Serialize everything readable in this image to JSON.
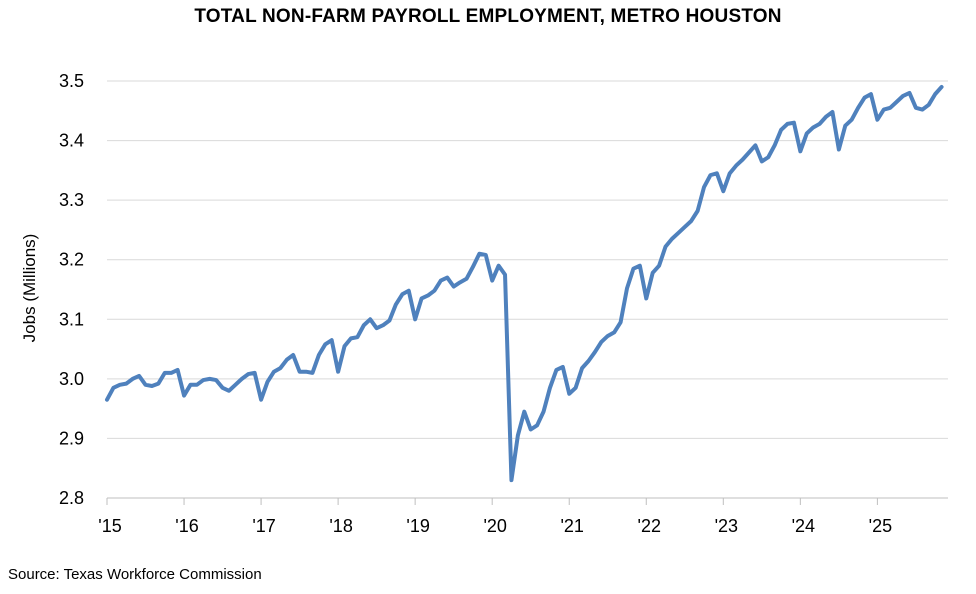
{
  "chart_data": {
    "type": "line",
    "title": "TOTAL NON-FARM PAYROLL EMPLOYMENT, METRO HOUSTON",
    "ylabel": "Jobs (Millions)",
    "xlabel": "",
    "ylim": [
      2.8,
      3.5
    ],
    "yticks": [
      "2.8",
      "2.9",
      "3.0",
      "3.1",
      "3.2",
      "3.3",
      "3.4",
      "3.5"
    ],
    "xticks": [
      "'15",
      "'16",
      "'17",
      "'18",
      "'19",
      "'20",
      "'21",
      "'22",
      "'23",
      "'24",
      "'25"
    ],
    "x_start": "2015-01",
    "grid": "horizontal",
    "legend": "none",
    "line_color": "#4f81bd",
    "series": [
      {
        "values": [
          2.965,
          2.985,
          2.99,
          2.992,
          3.0,
          3.005,
          2.99,
          2.988,
          2.992,
          3.01,
          3.01,
          3.015,
          2.972,
          2.99,
          2.99,
          2.998,
          3.0,
          2.998,
          2.985,
          2.98,
          2.99,
          3.0,
          3.008,
          3.01,
          2.965,
          2.995,
          3.012,
          3.018,
          3.032,
          3.04,
          3.012,
          3.012,
          3.01,
          3.04,
          3.058,
          3.065,
          3.012,
          3.055,
          3.068,
          3.07,
          3.09,
          3.1,
          3.085,
          3.09,
          3.098,
          3.125,
          3.142,
          3.148,
          3.1,
          3.135,
          3.14,
          3.148,
          3.165,
          3.17,
          3.155,
          3.162,
          3.168,
          3.188,
          3.21,
          3.208,
          3.165,
          3.19,
          3.175,
          2.83,
          2.905,
          2.945,
          2.915,
          2.922,
          2.945,
          2.985,
          3.015,
          3.02,
          2.975,
          2.985,
          3.018,
          3.03,
          3.045,
          3.062,
          3.072,
          3.078,
          3.095,
          3.152,
          3.185,
          3.19,
          3.135,
          3.178,
          3.19,
          3.222,
          3.235,
          3.245,
          3.255,
          3.265,
          3.282,
          3.322,
          3.342,
          3.345,
          3.315,
          3.345,
          3.358,
          3.368,
          3.38,
          3.392,
          3.365,
          3.372,
          3.392,
          3.418,
          3.428,
          3.43,
          3.382,
          3.412,
          3.422,
          3.428,
          3.44,
          3.448,
          3.385,
          3.425,
          3.435,
          3.455,
          3.472,
          3.478,
          3.435,
          3.452,
          3.455,
          3.465,
          3.475,
          3.48,
          3.455,
          3.452,
          3.46,
          3.478,
          3.49
        ]
      }
    ]
  },
  "footer": {
    "source": "Source: Texas Workforce Commission"
  }
}
